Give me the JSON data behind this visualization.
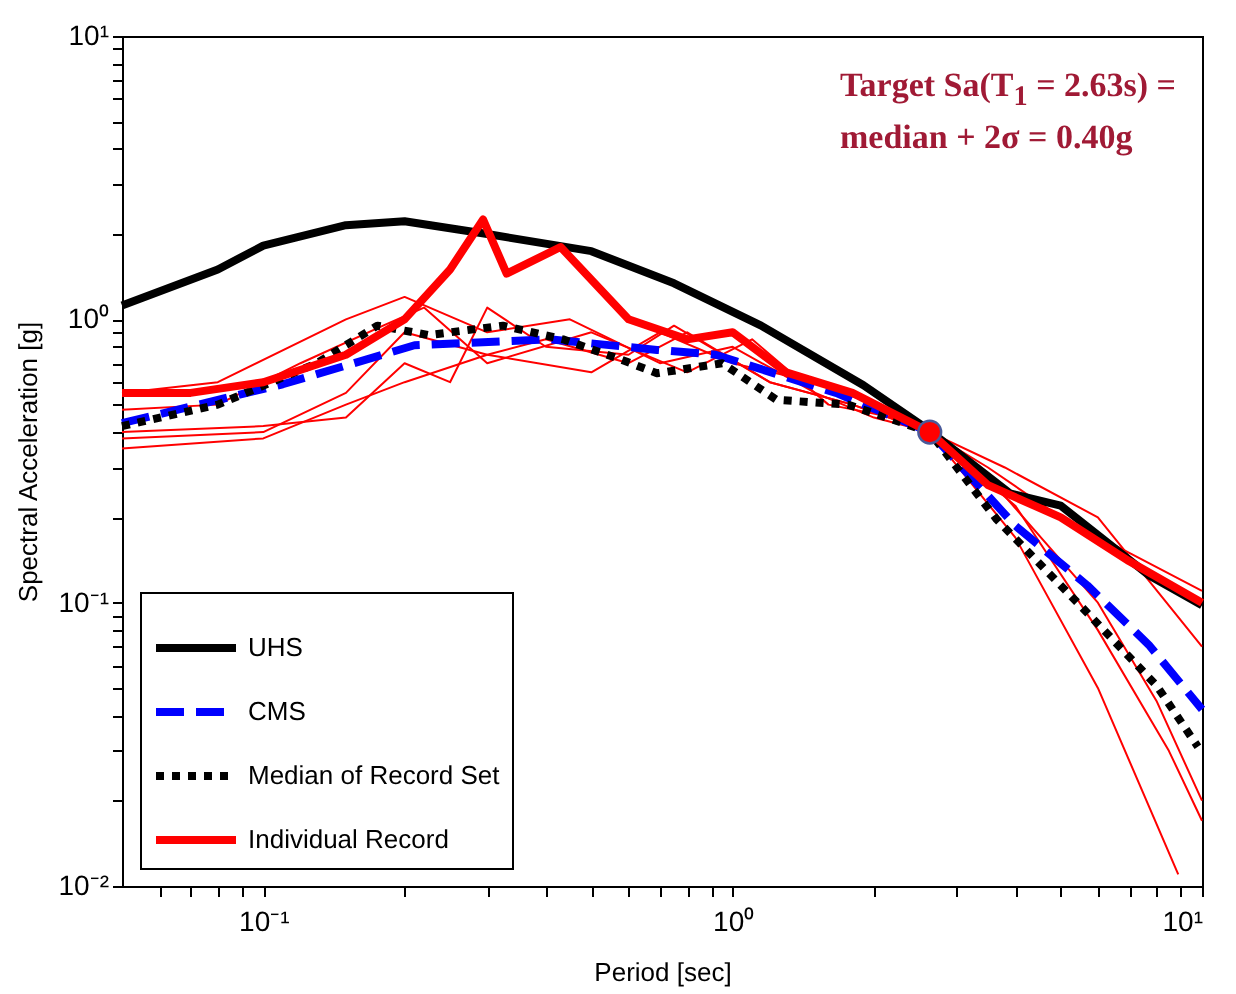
{
  "chart_data": {
    "type": "line",
    "xlabel": "Period [sec]",
    "ylabel": "Spectral Acceleration [g]",
    "log": "xy",
    "legend": "bottom left",
    "annotations": [
      "Target Sa(T$_{1}$ = 2.63s) =\nmedian + 2σ = 0.40g"
    ],
    "xlim": [
      0.05,
      10
    ],
    "ylim": [
      0.01,
      10
    ],
    "xticks": [
      {
        "value": 0.06,
        "label": null
      },
      {
        "value": 0.07,
        "label": null
      },
      {
        "value": 0.08,
        "label": null
      },
      {
        "value": 0.09,
        "label": null
      },
      {
        "value": 0.1,
        "label": "10⁻¹"
      },
      {
        "value": 0.2,
        "label": null
      },
      {
        "value": 0.3,
        "label": null
      },
      {
        "value": 0.4,
        "label": null
      },
      {
        "value": 0.5,
        "label": null
      },
      {
        "value": 0.6,
        "label": null
      },
      {
        "value": 0.7,
        "label": null
      },
      {
        "value": 0.8,
        "label": null
      },
      {
        "value": 0.9,
        "label": null
      },
      {
        "value": 1,
        "label": "10⁰"
      },
      {
        "value": 2,
        "label": null
      },
      {
        "value": 3,
        "label": null
      },
      {
        "value": 4,
        "label": null
      },
      {
        "value": 5,
        "label": null
      },
      {
        "value": 6,
        "label": null
      },
      {
        "value": 7,
        "label": null
      },
      {
        "value": 8,
        "label": null
      },
      {
        "value": 9,
        "label": null
      },
      {
        "value": 10,
        "label": "10¹"
      }
    ],
    "yticks": [
      {
        "value": 0.01,
        "label": "10⁻²"
      },
      {
        "value": 0.02,
        "label": null
      },
      {
        "value": 0.03,
        "label": null
      },
      {
        "value": 0.04,
        "label": null
      },
      {
        "value": 0.05,
        "label": null
      },
      {
        "value": 0.06,
        "label": null
      },
      {
        "value": 0.07,
        "label": null
      },
      {
        "value": 0.08,
        "label": null
      },
      {
        "value": 0.09,
        "label": null
      },
      {
        "value": 0.1,
        "label": "10⁻¹"
      },
      {
        "value": 0.2,
        "label": null
      },
      {
        "value": 0.3,
        "label": null
      },
      {
        "value": 0.4,
        "label": null
      },
      {
        "value": 0.5,
        "label": null
      },
      {
        "value": 0.6,
        "label": null
      },
      {
        "value": 0.7,
        "label": null
      },
      {
        "value": 0.8,
        "label": null
      },
      {
        "value": 0.9,
        "label": null
      },
      {
        "value": 1,
        "label": "10⁰"
      },
      {
        "value": 2,
        "label": null
      },
      {
        "value": 3,
        "label": null
      },
      {
        "value": 4,
        "label": null
      },
      {
        "value": 5,
        "label": null
      },
      {
        "value": 6,
        "label": null
      },
      {
        "value": 7,
        "label": null
      },
      {
        "value": 8,
        "label": null
      },
      {
        "value": 9,
        "label": null
      },
      {
        "value": 10,
        "label": "10¹"
      }
    ],
    "series": [
      {
        "name": "UHS",
        "color": "#000000",
        "line_style": "solid",
        "x": [
          0.05,
          0.08,
          0.1,
          0.15,
          0.2,
          0.3,
          0.5,
          0.75,
          1.15,
          1.9,
          2.6,
          3.9,
          5,
          7.7,
          10
        ],
        "values": [
          1.12,
          1.5,
          1.82,
          2.15,
          2.22,
          2.0,
          1.74,
          1.34,
          0.95,
          0.585,
          0.41,
          0.243,
          0.22,
          0.125,
          0.098
        ]
      },
      {
        "name": "CMS",
        "color": "#0000ff",
        "line_style": "dashed",
        "x": [
          0.05,
          0.11,
          0.21,
          0.41,
          0.69,
          0.92,
          1.66,
          2.63,
          4,
          5.7,
          7.7,
          10
        ],
        "values": [
          0.43,
          0.59,
          0.81,
          0.85,
          0.78,
          0.75,
          0.55,
          0.4,
          0.187,
          0.115,
          0.071,
          0.042
        ]
      },
      {
        "name": "Median of Record Set",
        "color": "#000000",
        "line_style": "dotted",
        "x": [
          0.05,
          0.08,
          0.13,
          0.175,
          0.225,
          0.324,
          0.435,
          0.58,
          0.69,
          0.95,
          1.24,
          1.76,
          2.63,
          3.65,
          5.7,
          8,
          9.8
        ],
        "values": [
          0.42,
          0.5,
          0.7,
          0.95,
          0.88,
          0.95,
          0.85,
          0.72,
          0.645,
          0.7,
          0.52,
          0.5,
          0.4,
          0.197,
          0.092,
          0.051,
          0.031
        ]
      },
      {
        "name": "Individual Record",
        "color": "#ff0000",
        "line_style": "solid",
        "x": [
          0.05,
          0.07,
          0.1,
          0.15,
          0.2,
          0.25,
          0.294,
          0.33,
          0.43,
          0.6,
          0.8,
          1,
          1.3,
          1.8,
          2.63,
          3.5,
          5,
          7,
          10
        ],
        "values": [
          0.55,
          0.55,
          0.6,
          0.75,
          1.0,
          1.5,
          2.25,
          1.45,
          1.8,
          1.0,
          0.85,
          0.9,
          0.65,
          0.55,
          0.4,
          0.26,
          0.2,
          0.14,
          0.1
        ]
      },
      {
        "color": "#ff0000",
        "line_style": "solid",
        "x": [
          0.05,
          0.1,
          0.15,
          0.2,
          0.3,
          0.4,
          0.6,
          0.8,
          1.2,
          1.8,
          2.63,
          4,
          6,
          8.9
        ],
        "values": [
          0.35,
          0.38,
          0.5,
          0.6,
          0.75,
          0.85,
          0.7,
          0.9,
          0.6,
          0.5,
          0.4,
          0.17,
          0.05,
          0.011
        ]
      },
      {
        "color": "#ff0000",
        "line_style": "solid",
        "x": [
          0.05,
          0.08,
          0.15,
          0.2,
          0.3,
          0.45,
          0.7,
          1,
          1.5,
          2,
          2.63,
          3.5,
          5,
          7,
          10
        ],
        "values": [
          0.55,
          0.6,
          1.0,
          1.2,
          0.9,
          1.0,
          0.7,
          0.8,
          0.55,
          0.45,
          0.4,
          0.3,
          0.2,
          0.15,
          0.11
        ]
      },
      {
        "color": "#ff0000",
        "line_style": "solid",
        "x": [
          0.05,
          0.08,
          0.12,
          0.18,
          0.22,
          0.3,
          0.5,
          0.8,
          1.1,
          1.6,
          2.2,
          2.63,
          3.7,
          6,
          8,
          10
        ],
        "values": [
          0.48,
          0.5,
          0.7,
          0.95,
          1.1,
          0.7,
          0.9,
          0.65,
          0.85,
          0.5,
          0.45,
          0.4,
          0.25,
          0.1,
          0.045,
          0.02
        ]
      },
      {
        "color": "#ff0000",
        "line_style": "solid",
        "x": [
          0.05,
          0.1,
          0.15,
          0.2,
          0.25,
          0.3,
          0.4,
          0.6,
          0.75,
          1.2,
          1.8,
          2.63,
          4,
          6,
          8.5,
          10
        ],
        "values": [
          0.4,
          0.42,
          0.45,
          0.7,
          0.6,
          1.1,
          0.8,
          0.75,
          0.95,
          0.6,
          0.5,
          0.4,
          0.22,
          0.08,
          0.03,
          0.017
        ]
      },
      {
        "color": "#ff0000",
        "line_style": "solid",
        "x": [
          0.05,
          0.1,
          0.15,
          0.2,
          0.3,
          0.5,
          0.7,
          1,
          1.5,
          2,
          2.63,
          3.8,
          6,
          10
        ],
        "values": [
          0.38,
          0.4,
          0.55,
          0.9,
          0.75,
          0.65,
          0.9,
          0.7,
          0.6,
          0.5,
          0.4,
          0.3,
          0.2,
          0.07
        ]
      },
      {
        "type": "scatter",
        "color": "#ff0000",
        "marker": "circle",
        "x": [
          2.63
        ],
        "values": [
          0.4
        ]
      }
    ]
  }
}
